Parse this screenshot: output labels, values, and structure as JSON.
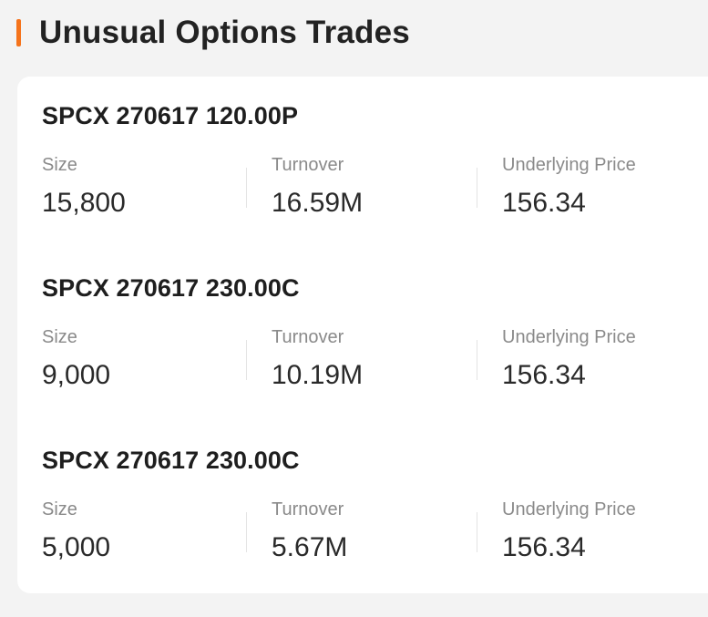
{
  "header": {
    "title": "Unusual Options Trades",
    "accent_color": "#f5731b"
  },
  "trades": [
    {
      "contract": "SPCX 270617 120.00P",
      "size_label": "Size",
      "size": "15,800",
      "turnover_label": "Turnover",
      "turnover": "16.59M",
      "underlying_label": "Underlying Price",
      "underlying_price": "156.34"
    },
    {
      "contract": "SPCX 270617 230.00C",
      "size_label": "Size",
      "size": "9,000",
      "turnover_label": "Turnover",
      "turnover": "10.19M",
      "underlying_label": "Underlying Price",
      "underlying_price": "156.34"
    },
    {
      "contract": "SPCX 270617 230.00C",
      "size_label": "Size",
      "size": "5,000",
      "turnover_label": "Turnover",
      "turnover": "5.67M",
      "underlying_label": "Underlying Price",
      "underlying_price": "156.34"
    }
  ]
}
